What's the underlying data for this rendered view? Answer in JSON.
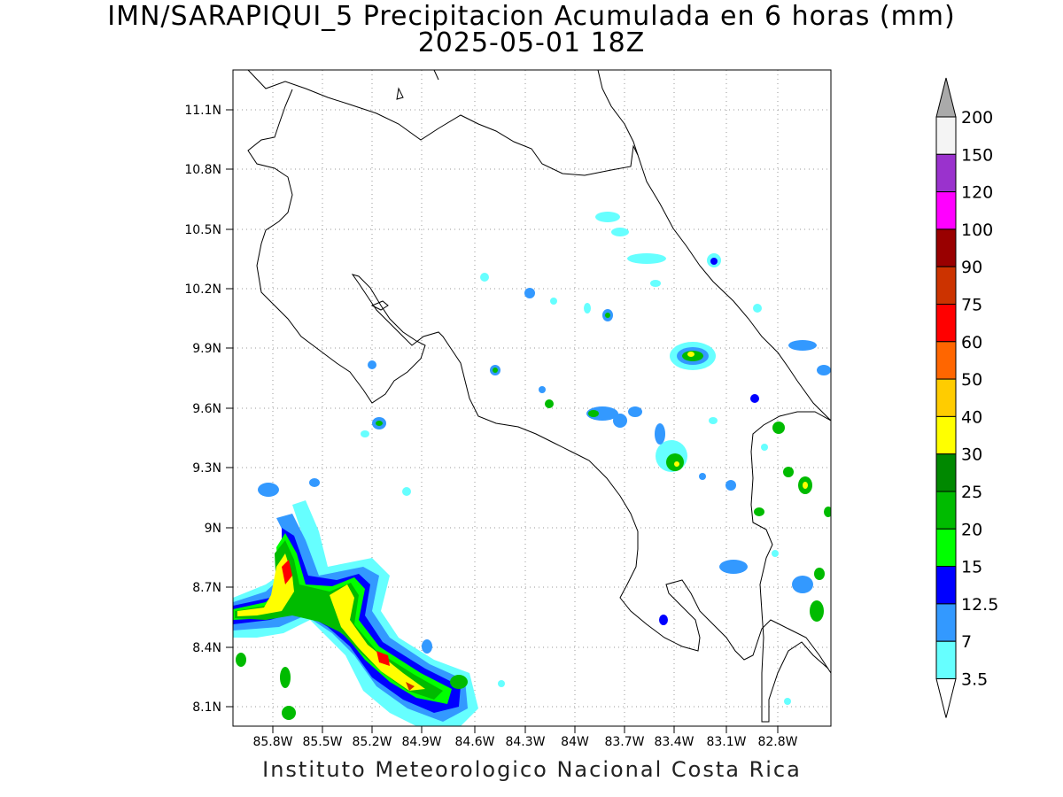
{
  "title": {
    "line1": "IMN/SARAPIQUI_5 Precipitacion Acumulada en 6 horas (mm)",
    "line2": "2025-05-01 18Z"
  },
  "footer": "Instituto Meteorologico Nacional Costa Rica",
  "map": {
    "lat_labels": [
      "11.1N",
      "10.8N",
      "10.5N",
      "10.2N",
      "9.9N",
      "9.6N",
      "9.3N",
      "9N",
      "8.7N",
      "8.4N",
      "8.1N"
    ],
    "lon_labels": [
      "85.8W",
      "85.5W",
      "85.2W",
      "84.9W",
      "84.6W",
      "84.3W",
      "84W",
      "83.7W",
      "83.4W",
      "83.1W",
      "82.8W"
    ]
  },
  "legend": {
    "levels": [
      {
        "label": "200",
        "color": "#f4f4f4"
      },
      {
        "label": "150",
        "color": "#9a32cd"
      },
      {
        "label": "120",
        "color": "#ff00ff"
      },
      {
        "label": "100",
        "color": "#990000"
      },
      {
        "label": "90",
        "color": "#cc3300"
      },
      {
        "label": "75",
        "color": "#ff0000"
      },
      {
        "label": "60",
        "color": "#ff6600"
      },
      {
        "label": "50",
        "color": "#ffcc00"
      },
      {
        "label": "40",
        "color": "#ffff00"
      },
      {
        "label": "30",
        "color": "#008800"
      },
      {
        "label": "25",
        "color": "#00bb00"
      },
      {
        "label": "20",
        "color": "#00ff00"
      },
      {
        "label": "15",
        "color": "#0000ff"
      },
      {
        "label": "12.5",
        "color": "#3399ff"
      },
      {
        "label": "7",
        "color": "#66ffff"
      },
      {
        "label": "3.5",
        "color": "#ffffff"
      }
    ],
    "top_arrow_color": "#aaaaaa"
  }
}
